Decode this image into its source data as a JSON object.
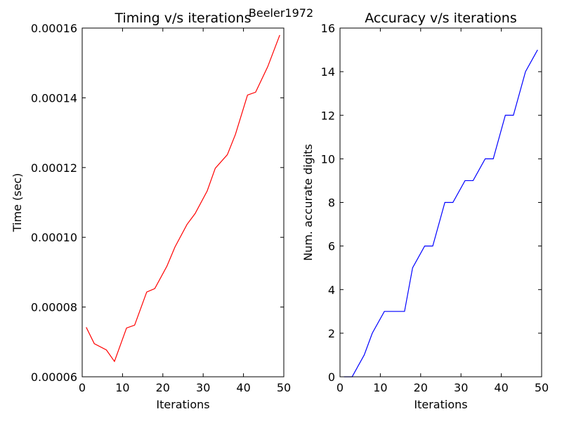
{
  "suptitle": "Beeler1972",
  "chart_data": [
    {
      "type": "line",
      "title": "Timing v/s iterations",
      "xlabel": "Iterations",
      "ylabel": "Time (sec)",
      "xlim": [
        0,
        50
      ],
      "ylim": [
        6e-05,
        0.00016
      ],
      "xticks": [
        0,
        10,
        20,
        30,
        40,
        50
      ],
      "xtick_labels": [
        "0",
        "10",
        "20",
        "30",
        "40",
        "50"
      ],
      "yticks": [
        6e-05,
        8e-05,
        0.0001,
        0.00012,
        0.00014,
        0.00016
      ],
      "ytick_labels": [
        "0.00006",
        "0.00008",
        "0.00010",
        "0.00012",
        "0.00014",
        "0.00016"
      ],
      "grid": false,
      "series": [
        {
          "color": "#ff0000",
          "x": [
            1,
            3,
            6,
            8,
            11,
            13,
            16,
            18,
            21,
            23,
            26,
            28,
            31,
            33,
            36,
            38,
            41,
            43,
            46,
            49
          ],
          "y": [
            7.42e-05,
            6.95e-05,
            6.77e-05,
            6.44e-05,
            7.4e-05,
            7.48e-05,
            8.43e-05,
            8.53e-05,
            9.17e-05,
            9.72e-05,
            0.0001037,
            0.0001068,
            0.0001133,
            0.0001198,
            0.0001237,
            0.0001295,
            0.0001408,
            0.0001416,
            0.0001489,
            0.000158
          ]
        }
      ]
    },
    {
      "type": "line",
      "title": "Accuracy v/s iterations",
      "xlabel": "Iterations",
      "ylabel": "Num. accurate digits",
      "xlim": [
        0,
        50
      ],
      "ylim": [
        0,
        16
      ],
      "xticks": [
        0,
        10,
        20,
        30,
        40,
        50
      ],
      "xtick_labels": [
        "0",
        "10",
        "20",
        "30",
        "40",
        "50"
      ],
      "yticks": [
        0,
        2,
        4,
        6,
        8,
        10,
        12,
        14,
        16
      ],
      "ytick_labels": [
        "0",
        "2",
        "4",
        "6",
        "8",
        "10",
        "12",
        "14",
        "16"
      ],
      "grid": false,
      "series": [
        {
          "color": "#0000ff",
          "x": [
            1,
            3,
            6,
            8,
            11,
            13,
            16,
            18,
            21,
            23,
            26,
            28,
            31,
            33,
            36,
            38,
            41,
            43,
            46,
            49
          ],
          "y": [
            0,
            0,
            1,
            2,
            3,
            3,
            3,
            5,
            6,
            6,
            8,
            8,
            9,
            9,
            10,
            10,
            12,
            12,
            14,
            15
          ]
        }
      ]
    }
  ]
}
